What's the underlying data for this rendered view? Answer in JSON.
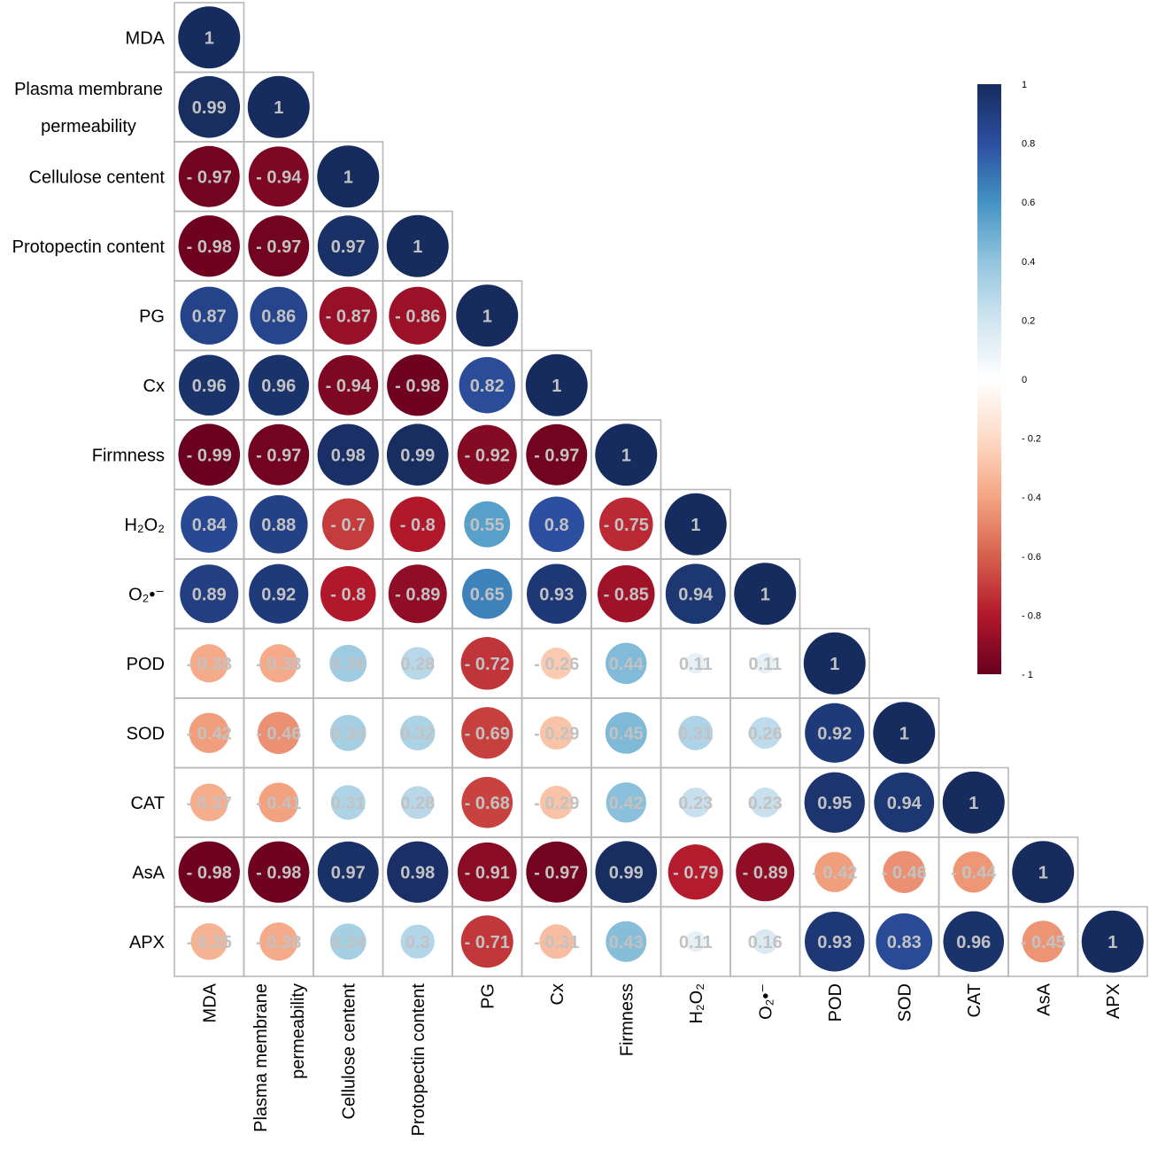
{
  "chart_data": {
    "type": "heatmap",
    "style": "lower-triangle correlation matrix with sized circles",
    "variables": [
      {
        "id": "MDA",
        "row_label": [
          "MDA"
        ],
        "col_label": [
          "MDA"
        ]
      },
      {
        "id": "Plasma membrane permeability",
        "row_label": [
          "Plasma membrane",
          "permeability"
        ],
        "col_label": [
          "Plasma membrane",
          "permeability"
        ]
      },
      {
        "id": "Cellulose centent",
        "row_label": [
          "Cellulose centent"
        ],
        "col_label": [
          "Cellulose centent"
        ]
      },
      {
        "id": "Protopectin content",
        "row_label": [
          "Protopectin content"
        ],
        "col_label": [
          "Protopectin content"
        ]
      },
      {
        "id": "PG",
        "row_label": [
          "PG"
        ],
        "col_label": [
          "PG"
        ]
      },
      {
        "id": "Cx",
        "row_label": [
          "Cx"
        ],
        "col_label": [
          "Cx"
        ]
      },
      {
        "id": "Firmness",
        "row_label": [
          "Firmness"
        ],
        "col_label": [
          "Firmness"
        ]
      },
      {
        "id": "H2O2",
        "row_label": [
          "H₂O₂"
        ],
        "col_label": [
          "H₂O₂"
        ]
      },
      {
        "id": "O2•-",
        "row_label": [
          "O₂•⁻"
        ],
        "col_label": [
          "O₂•⁻"
        ]
      },
      {
        "id": "POD",
        "row_label": [
          "POD"
        ],
        "col_label": [
          "POD"
        ]
      },
      {
        "id": "SOD",
        "row_label": [
          "SOD"
        ],
        "col_label": [
          "SOD"
        ]
      },
      {
        "id": "CAT",
        "row_label": [
          "CAT"
        ],
        "col_label": [
          "CAT"
        ]
      },
      {
        "id": "AsA",
        "row_label": [
          "AsA"
        ],
        "col_label": [
          "AsA"
        ]
      },
      {
        "id": "APX",
        "row_label": [
          "APX"
        ],
        "col_label": [
          "APX"
        ]
      }
    ],
    "matrix": [
      [
        1
      ],
      [
        0.99,
        1
      ],
      [
        -0.97,
        -0.94,
        1
      ],
      [
        -0.98,
        -0.97,
        0.97,
        1
      ],
      [
        0.87,
        0.86,
        -0.87,
        -0.86,
        1
      ],
      [
        0.96,
        0.96,
        -0.94,
        -0.98,
        0.82,
        1
      ],
      [
        -0.99,
        -0.97,
        0.98,
        0.99,
        -0.92,
        -0.97,
        1
      ],
      [
        0.84,
        0.88,
        -0.7,
        -0.8,
        0.55,
        0.8,
        -0.75,
        1
      ],
      [
        0.89,
        0.92,
        -0.8,
        -0.89,
        0.65,
        0.93,
        -0.85,
        0.94,
        1
      ],
      [
        -0.38,
        -0.38,
        0.36,
        0.28,
        -0.72,
        -0.26,
        0.44,
        0.11,
        0.11,
        1
      ],
      [
        -0.42,
        -0.46,
        0.34,
        0.32,
        -0.69,
        -0.29,
        0.45,
        0.31,
        0.26,
        0.92,
        1
      ],
      [
        -0.37,
        -0.41,
        0.31,
        0.28,
        -0.68,
        -0.29,
        0.42,
        0.23,
        0.23,
        0.95,
        0.94,
        1
      ],
      [
        -0.98,
        -0.98,
        0.97,
        0.98,
        -0.91,
        -0.97,
        0.99,
        -0.79,
        -0.89,
        -0.42,
        -0.46,
        -0.44,
        1
      ],
      [
        -0.35,
        -0.38,
        0.34,
        0.3,
        -0.71,
        -0.31,
        0.43,
        0.11,
        0.16,
        0.93,
        0.83,
        0.96,
        -0.45,
        1
      ]
    ],
    "colorbar": {
      "range": [
        -1,
        1
      ],
      "ticks": [
        "1",
        "0.8",
        "0.6",
        "0.4",
        "0.2",
        "0",
        "- 0.2",
        "- 0.4",
        "- 0.6",
        "- 0.8",
        "- 1"
      ],
      "colors": [
        "#67001f",
        "#b2182b",
        "#d6604d",
        "#f4a582",
        "#fddbc7",
        "#ffffff",
        "#d1e5f0",
        "#92c5de",
        "#4393c3",
        "#2c4fa0",
        "#172c5e"
      ]
    }
  }
}
